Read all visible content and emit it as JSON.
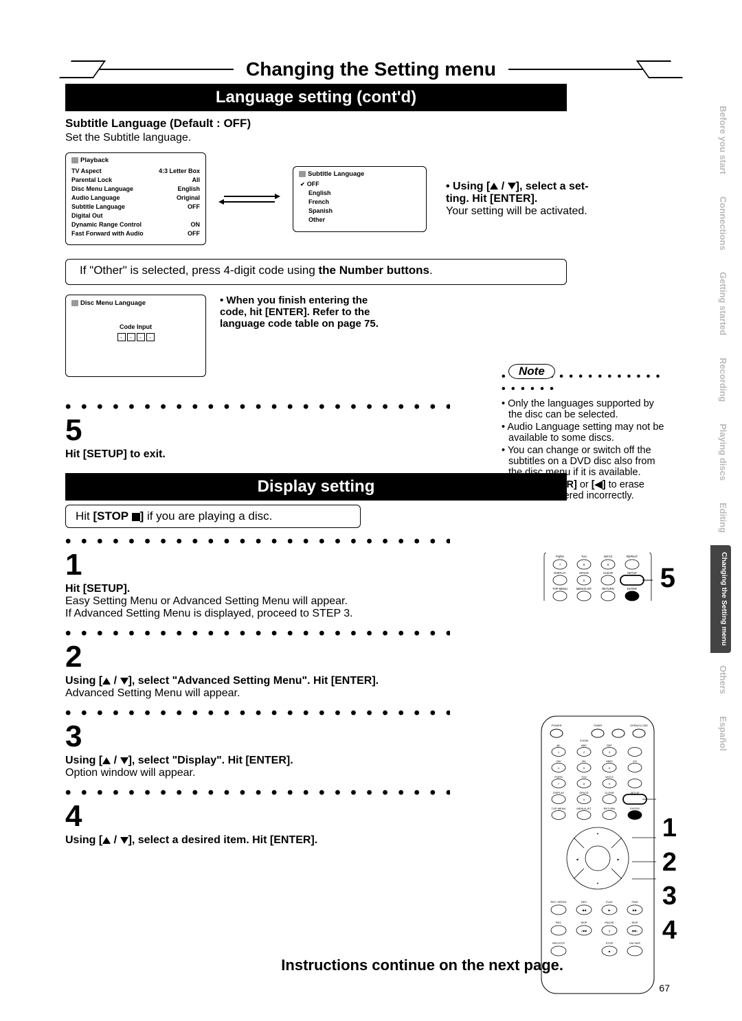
{
  "header": {
    "title": "Changing the Setting menu"
  },
  "section1": {
    "bar": "Language setting (cont'd)",
    "heading": "Subtitle Language (Default : OFF)",
    "sub": "Set the Subtitle language.",
    "playback_panel": {
      "title": "Playback",
      "rows": [
        {
          "k": "TV Aspect",
          "v": "4:3 Letter Box"
        },
        {
          "k": "Parental Lock",
          "v": "All"
        },
        {
          "k": "Disc Menu Language",
          "v": "English"
        },
        {
          "k": "Audio Language",
          "v": "Original"
        },
        {
          "k": "Subtitle Language",
          "v": "OFF"
        },
        {
          "k": "Digital Out",
          "v": ""
        },
        {
          "k": "Dynamic Range Control",
          "v": "ON"
        },
        {
          "k": "Fast Forward with Audio",
          "v": "OFF"
        }
      ]
    },
    "subtitle_panel": {
      "title": "Subtitle Language",
      "items": [
        "OFF",
        "English",
        "French",
        "Spanish",
        "Other"
      ],
      "selected": 0
    },
    "using_line1": "• Using [",
    "using_line2": "], select a set-",
    "using_line3": "ting. Hit [ENTER].",
    "using_sub": "Your setting will be activated."
  },
  "other_line_a": "If \"Other\" is selected, press 4-digit code using ",
  "other_line_b": "the Number buttons",
  "code_panel": {
    "title": "Disc Menu Language",
    "label": "Code Input"
  },
  "code_instr_a": "• When you finish entering the code, hit [ENTER]. Refer to the language code table on page 75.",
  "note": {
    "title": "Note",
    "items": [
      "Only the languages supported by the disc can be selected.",
      "Audio Language setting may not be available to some discs.",
      "You can change or switch off the subtitles on a DVD disc also from the disc menu if it is available.",
      "Press [CLEAR] or [◀] to erase numbers entered incorrectly."
    ]
  },
  "step5": {
    "num": "5",
    "text": "Hit [SETUP] to exit."
  },
  "section2": {
    "bar": "Display setting"
  },
  "stop_line_a": "Hit ",
  "stop_line_b": "[STOP ",
  "stop_line_c": "]",
  "stop_line_d": " if you are playing a disc.",
  "steps": [
    {
      "num": "1",
      "bold": "Hit [SETUP].",
      "text": "Easy Setting Menu or Advanced Setting Menu will appear.",
      "text2": "If Advanced Setting Menu is displayed, proceed to STEP 3."
    },
    {
      "num": "2",
      "bold": "Using [▲ / ▼], select \"Advanced Setting Menu\". Hit [ENTER].",
      "text": "Advanced Setting Menu will appear."
    },
    {
      "num": "3",
      "bold": "Using [▲ / ▼], select \"Display\". Hit [ENTER].",
      "text": "Option window will appear."
    },
    {
      "num": "4",
      "bold": "Using [▲ / ▼], select a desired item. Hit [ENTER].",
      "text": ""
    }
  ],
  "continue": "Instructions continue on the next page.",
  "pagenum": "67",
  "sidebar": [
    "Before you start",
    "Connections",
    "Getting started",
    "Recording",
    "Playing discs",
    "Editing",
    "Changing the Setting menu",
    "Others",
    "Español"
  ],
  "sidebar_active": 6,
  "remote_side_5": "5",
  "remote_nums": [
    "1",
    "2",
    "3",
    "4"
  ],
  "remote_labels_small": {
    "row1": [
      "PQRS",
      "TUV",
      "WXYZ",
      "REPEAT"
    ],
    "row1b": [
      "7",
      "8",
      "9",
      ""
    ],
    "row2": [
      "DISPLAY",
      "SPACE",
      "CLEAR",
      "SETUP"
    ],
    "row2b": [
      "",
      "0",
      "",
      ""
    ],
    "row3": [
      "TOP MENU",
      "MENU/LIST",
      "RETURN",
      "ENTER"
    ]
  },
  "remote_labels_big": {
    "top": [
      "POWER",
      "",
      "TIMER PROG.",
      "OPEN/CLOSE"
    ],
    "r1": [
      "",
      "ZOOM",
      "",
      ""
    ],
    "r2": [
      "@!.",
      "ABC",
      "DEF",
      ""
    ],
    "r2b": [
      "1",
      "2",
      "3",
      ""
    ],
    "r3": [
      "GHI",
      "JKL",
      "MNO",
      "CH"
    ],
    "r3b": [
      "4",
      "5",
      "6",
      ""
    ],
    "r4": [
      "PQRS",
      "TUV",
      "WXYZ",
      ""
    ],
    "r4b": [
      "7",
      "8",
      "9",
      ""
    ],
    "r5": [
      "DISPLAY",
      "SPACE",
      "CLEAR",
      "SETUP"
    ],
    "r5b": [
      "",
      "0",
      "",
      ""
    ],
    "r6": [
      "TOP MENU",
      "MENU/LIST",
      "RETURN",
      "ENTER"
    ],
    "nav": [
      "▲",
      "◀",
      "▶",
      "▼"
    ],
    "r7": [
      "REC SPEED",
      "REV",
      "PLAY",
      "FWD"
    ],
    "r8": [
      "REC MONITOR",
      "SKIP",
      "PAUSE",
      "SKIP"
    ],
    "r9": [
      "REC/OTR",
      "",
      "STOP",
      "CM SKIP"
    ]
  }
}
